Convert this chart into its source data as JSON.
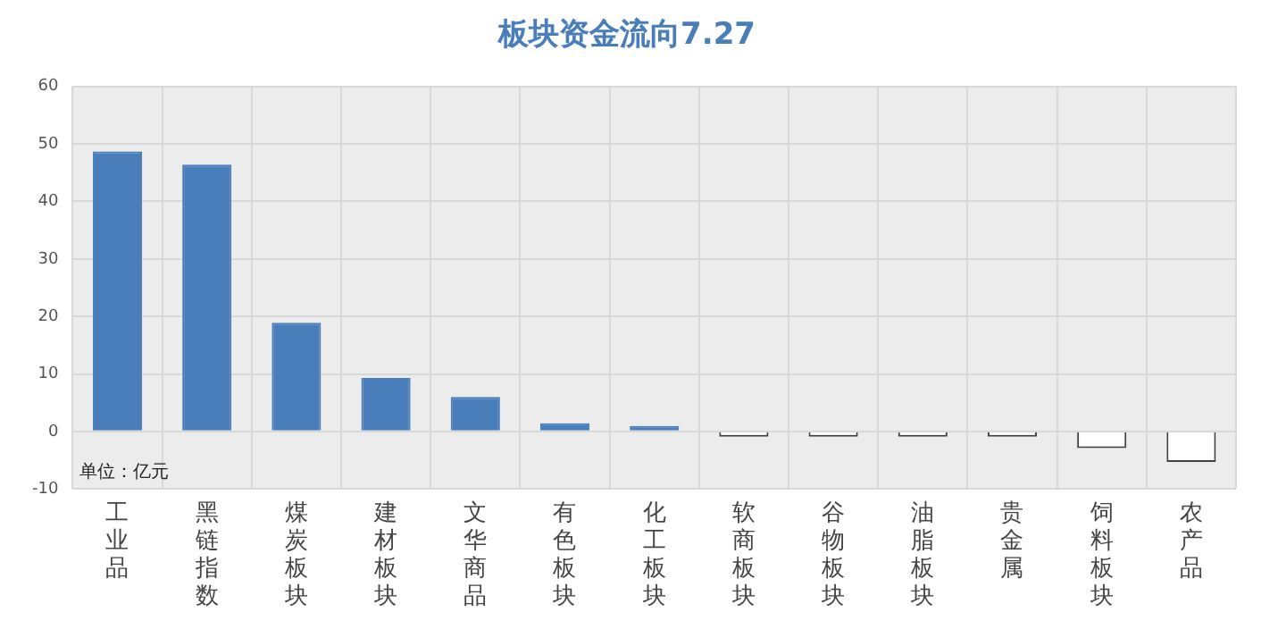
{
  "chart_data": {
    "type": "bar",
    "title": "板块资金流向7.27",
    "categories": [
      "工业品",
      "黑链指数",
      "煤炭板块",
      "建材板块",
      "文华商品",
      "有色板块",
      "化工板块",
      "软商板块",
      "谷物板块",
      "油脂板块",
      "贵金属",
      "饲料板块",
      "农产品"
    ],
    "values": [
      48.7,
      46.4,
      18.9,
      9.3,
      6.0,
      1.4,
      0.3,
      -0.3,
      -0.3,
      -0.5,
      -0.7,
      -2.9,
      -5.3
    ],
    "colors": [
      "#4a7ebb",
      "#4a7ebb",
      "#4a7ebb",
      "#4a7ebb",
      "#4a7ebb",
      "#4a7ebb",
      "#4a7ebb",
      "#ffffff",
      "#ffffff",
      "#ffffff",
      "#ffffff",
      "#ffffff",
      "#ffffff"
    ],
    "ylim": [
      -10,
      60
    ],
    "yticks": [
      -10,
      0,
      10,
      20,
      30,
      40,
      50,
      60
    ],
    "grid": true,
    "annotations": [
      "单位：亿元"
    ]
  }
}
